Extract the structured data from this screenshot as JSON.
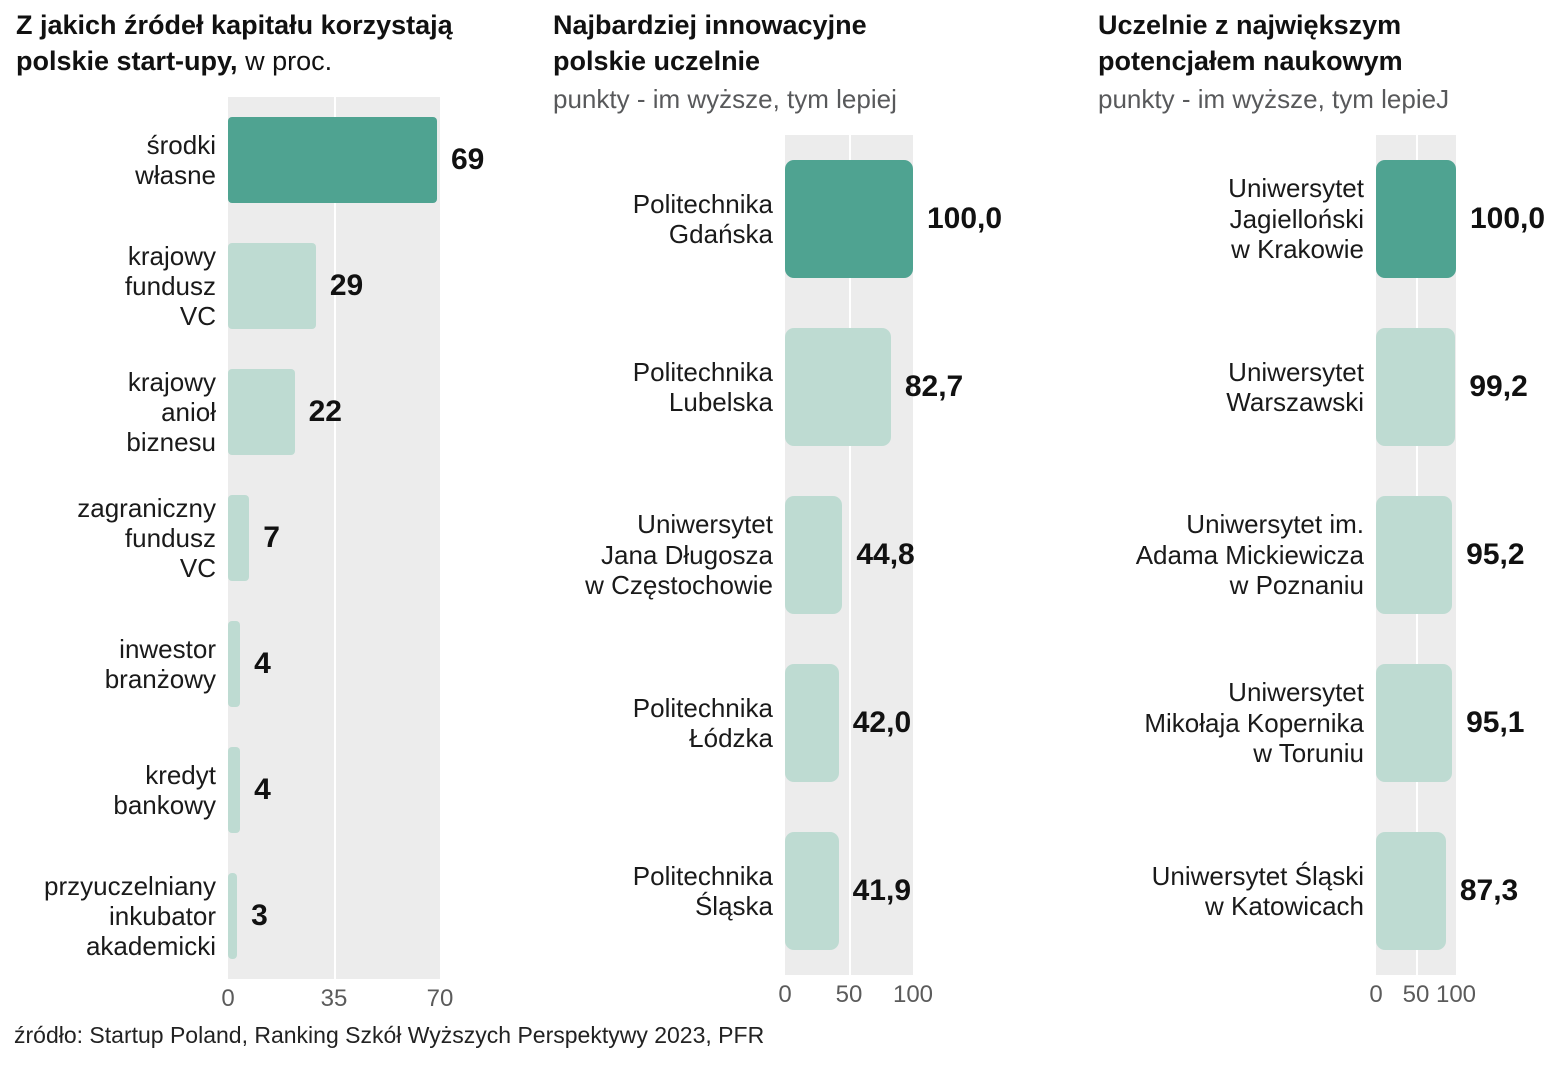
{
  "page": {
    "source_note": "źródło: Startup Poland, Ranking Szkół Wyższych Perspektywy 2023, PFR"
  },
  "colors": {
    "bar_primary": "#4fa391",
    "bar_secondary": "#bedbd2",
    "plot_background": "#ececec",
    "grid_line": "#ffffff",
    "tick_text": "#5b5b5b",
    "subtitle_text": "#58595b",
    "text": "#1a1a1a"
  },
  "chart_data": [
    {
      "type": "bar",
      "orientation": "horizontal",
      "title_bold": "Z jakich źródeł kapitału korzystają polskie start-upy,",
      "title_suffix": " w proc.",
      "subtitle": "",
      "categories": [
        "środki\nwłasne",
        "krajowy\nfundusz\nVC",
        "krajowy\nanioł\nbiznesu",
        "zagraniczny\nfundusz\nVC",
        "inwestor\nbranżowy",
        "kredyt\nbankowy",
        "przyuczelniany\ninkubator\nakademicki"
      ],
      "values": [
        69,
        29,
        22,
        7,
        4,
        4,
        3
      ],
      "value_labels": [
        "69",
        "29",
        "22",
        "7",
        "4",
        "4",
        "3"
      ],
      "xlim": [
        0,
        70
      ],
      "x_ticks": [
        "0",
        "35",
        "70"
      ],
      "emphasis_index": 0,
      "legend": "none",
      "grid": "mid-vertical-line"
    },
    {
      "type": "bar",
      "orientation": "horizontal",
      "title_bold": "Najbardziej innowacyjne polskie uczelnie",
      "title_suffix": "",
      "subtitle": "punkty - im wyższe, tym lepiej",
      "categories": [
        "Politechnika\nGdańska",
        "Politechnika\nLubelska",
        "Uniwersytet\nJana Długosza\nw Częstochowie",
        "Politechnika\nŁódzka",
        "Politechnika\nŚląska"
      ],
      "values": [
        100.0,
        82.7,
        44.8,
        42.0,
        41.9
      ],
      "value_labels": [
        "100,0",
        "82,7",
        "44,8",
        "42,0",
        "41,9"
      ],
      "xlim": [
        0,
        100
      ],
      "x_ticks": [
        "0",
        "50",
        "100"
      ],
      "emphasis_index": 0,
      "legend": "none",
      "grid": "mid-vertical-line"
    },
    {
      "type": "bar",
      "orientation": "horizontal",
      "title_bold": "Uczelnie z największym potencjałem naukowym",
      "title_suffix": "",
      "subtitle": "punkty - im wyższe, tym lepieJ",
      "categories": [
        "Uniwersytet\nJagielloński\nw Krakowie",
        "Uniwersytet\nWarszawski",
        "Uniwersytet im.\nAdama Mickiewicza\nw Poznaniu",
        "Uniwersytet\nMikołaja Kopernika\nw Toruniu",
        "Uniwersytet Śląski\nw Katowicach"
      ],
      "values": [
        100.0,
        99.2,
        95.2,
        95.1,
        87.3
      ],
      "value_labels": [
        "100,0",
        "99,2",
        "95,2",
        "95,1",
        "87,3"
      ],
      "xlim": [
        0,
        100
      ],
      "x_ticks": [
        "0",
        "50",
        "100"
      ],
      "emphasis_index": 0,
      "legend": "none",
      "grid": "mid-vertical-line"
    }
  ]
}
